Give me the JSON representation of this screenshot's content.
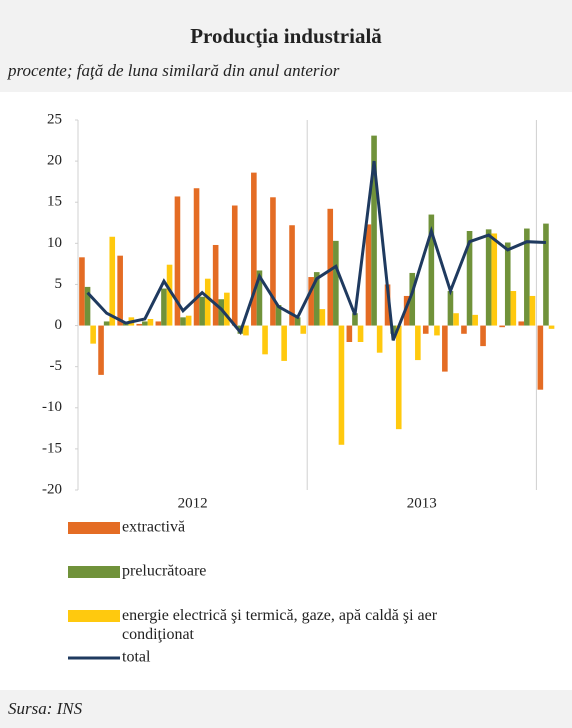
{
  "chart_data": {
    "type": "bar",
    "title": "Producţia industrială",
    "subtitle": "procente; faţă de luna similară din anul anterior",
    "source": "Sursa: INS",
    "categories": [
      null,
      null,
      null,
      null,
      null,
      null,
      null,
      null,
      null,
      null,
      null,
      null,
      null,
      null,
      null,
      null,
      null,
      null,
      null,
      null,
      null,
      null,
      null,
      null,
      null
    ],
    "year_labels": [
      "2012",
      "2013"
    ],
    "ylim": [
      -20,
      25
    ],
    "yticks": [
      -20,
      -15,
      -10,
      -5,
      0,
      5,
      10,
      15,
      20,
      25
    ],
    "series": [
      {
        "name": "extractivă",
        "color": "#e46c24",
        "values": [
          8.3,
          -6.0,
          8.5,
          0.2,
          0.5,
          15.7,
          16.7,
          9.8,
          14.6,
          18.6,
          15.6,
          12.2,
          5.9,
          14.2,
          -2.0,
          12.3,
          5.0,
          3.6,
          -1.0,
          -5.6,
          -1.0,
          -2.5,
          -0.2,
          0.5,
          -7.8
        ]
      },
      {
        "name": "prelucrătoare",
        "color": "#70923a",
        "values": [
          4.7,
          0.5,
          0.3,
          0.5,
          4.5,
          1.0,
          3.5,
          3.2,
          -1.0,
          6.7,
          2.5,
          1.0,
          6.5,
          10.3,
          1.5,
          23.1,
          -1.0,
          6.4,
          13.5,
          4.2,
          11.5,
          11.7,
          10.1,
          11.8,
          12.4
        ]
      },
      {
        "name": "energie electrică şi termică, gaze, apă caldă şi aer condiţionat",
        "color": "#ffc90e",
        "values": [
          -2.2,
          10.8,
          1.0,
          0.8,
          7.4,
          1.2,
          5.7,
          4.0,
          -1.2,
          -3.5,
          -4.3,
          -1.0,
          2.0,
          -14.5,
          -2.0,
          -3.3,
          -12.6,
          -4.2,
          -1.2,
          1.5,
          1.3,
          11.2,
          4.2,
          3.6,
          -0.4
        ]
      },
      {
        "name": "total",
        "type": "line",
        "color": "#1f3a5f",
        "values": [
          4.0,
          1.5,
          0.3,
          0.8,
          5.4,
          1.8,
          4.0,
          2.0,
          -0.8,
          6.0,
          2.3,
          1.0,
          5.7,
          7.2,
          1.3,
          20.0,
          -1.8,
          4.0,
          11.5,
          4.2,
          10.2,
          11.0,
          9.2,
          10.2,
          10.1
        ]
      }
    ]
  }
}
